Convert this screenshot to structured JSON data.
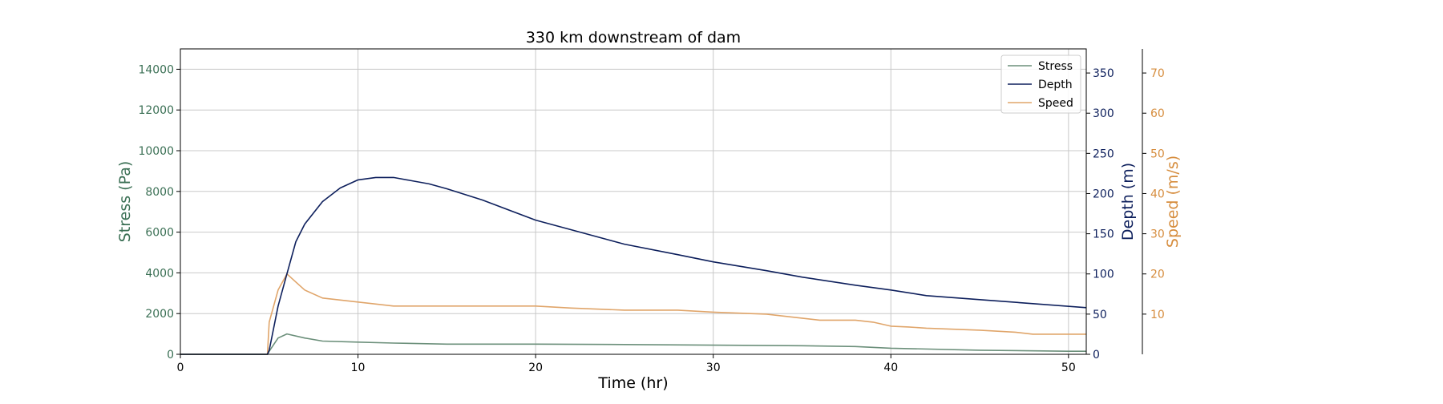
{
  "chart_data": {
    "type": "line",
    "title": "330 km downstream of dam",
    "xlabel": "Time (hr)",
    "xlim": [
      0,
      51
    ],
    "xticks": [
      0,
      10,
      20,
      30,
      40,
      50
    ],
    "grid": true,
    "legend_position": "top-right",
    "axes": [
      {
        "id": "stress",
        "label": "Stress (Pa)",
        "side": "left",
        "color": "#3b7055",
        "ylim": [
          0,
          15000
        ],
        "ticks": [
          0,
          2000,
          4000,
          6000,
          8000,
          10000,
          12000,
          14000
        ]
      },
      {
        "id": "depth",
        "label": "Depth (m)",
        "side": "right",
        "color": "#0d1f5c",
        "ylim": [
          0,
          380
        ],
        "ticks": [
          0,
          50,
          100,
          150,
          200,
          250,
          300,
          350
        ]
      },
      {
        "id": "speed",
        "label": "Speed (m/s)",
        "side": "right-outer",
        "color": "#d68d3e",
        "ylim": [
          0,
          76
        ],
        "ticks": [
          10,
          20,
          30,
          40,
          50,
          60,
          70
        ]
      }
    ],
    "series": [
      {
        "name": "Stress",
        "axis": "stress",
        "color": "#6b8f7a",
        "x": [
          0,
          4.9,
          5.0,
          5.5,
          6.0,
          7,
          8,
          10,
          12,
          15,
          20,
          25,
          30,
          35,
          38,
          40,
          45,
          50,
          51
        ],
        "y": [
          0,
          0,
          150,
          800,
          1000,
          800,
          650,
          600,
          550,
          500,
          500,
          480,
          450,
          420,
          380,
          300,
          200,
          150,
          150
        ]
      },
      {
        "name": "Depth",
        "axis": "depth",
        "color": "#0d1f5c",
        "x": [
          0,
          4.9,
          5.0,
          5.5,
          6.0,
          6.5,
          7,
          8,
          9,
          10,
          11,
          12,
          13,
          14,
          15,
          17,
          20,
          22,
          25,
          28,
          30,
          33,
          35,
          38,
          40,
          42,
          45,
          48,
          51
        ],
        "y": [
          0,
          0,
          5,
          60,
          100,
          140,
          162,
          190,
          207,
          217,
          220,
          220,
          216,
          212,
          206,
          192,
          167,
          155,
          137,
          124,
          115,
          104,
          96,
          86,
          80,
          73,
          68,
          63,
          58
        ]
      },
      {
        "name": "Speed",
        "axis": "speed",
        "color": "#e0a56a",
        "x": [
          0,
          4.9,
          5.0,
          5.5,
          6.0,
          6.5,
          7,
          8,
          10,
          12,
          15,
          18,
          20,
          22,
          25,
          28,
          30,
          33,
          34,
          35,
          36,
          38,
          39,
          40,
          41,
          42,
          45,
          47,
          48,
          51
        ],
        "y": [
          0,
          0,
          8,
          16,
          20,
          18,
          16,
          14,
          13,
          12,
          12,
          12,
          12,
          11.5,
          11,
          11,
          10.5,
          10,
          9.5,
          9,
          8.5,
          8.5,
          8,
          7,
          6.8,
          6.5,
          6,
          5.5,
          5,
          5
        ]
      }
    ]
  }
}
